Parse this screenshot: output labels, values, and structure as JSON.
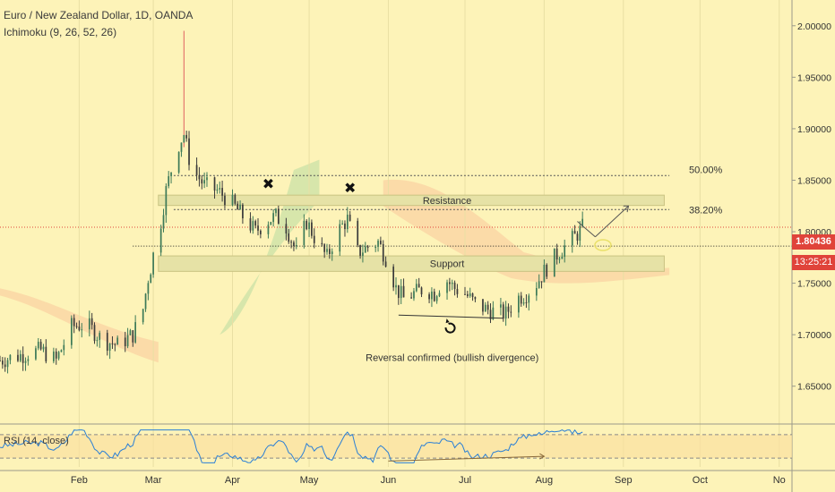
{
  "header": {
    "title": "Euro / New Zealand Dollar, 1D, OANDA",
    "indicator": "Ichimoku (9, 26, 52, 26)"
  },
  "price_axis": {
    "last_price": "1.80436",
    "countdown": "13:25:21",
    "last_color": "#e0433a"
  },
  "colors": {
    "background": "#fdf3b8",
    "up_candle": "#3d7a58",
    "down_candle": "#3b3b3b",
    "cloud_green": "#b8dba0",
    "cloud_red": "#f9c79a",
    "rsi_line": "#2a7fd6",
    "zone_fill": "#e6e2a6"
  },
  "annotations": {
    "resistance": "Resistance",
    "support": "Support",
    "fib_50": "50.00%",
    "fib_38": "38.20%",
    "reversal": "Reversal confirmed (bullish divergence)",
    "x_mark": "✖"
  },
  "rsi": {
    "label": "RSI (14, close)"
  },
  "chart_data": {
    "type": "candlestick",
    "title": "Euro / New Zealand Dollar, 1D, OANDA",
    "ylim": [
      1.615,
      2.025
    ],
    "y_ticks": [
      "2.00000",
      "1.95000",
      "1.90000",
      "1.85000",
      "1.80000",
      "1.75000",
      "1.70000",
      "1.65000"
    ],
    "y_tick_values": [
      2.0,
      1.95,
      1.9,
      1.85,
      1.8,
      1.75,
      1.7,
      1.65
    ],
    "x_labels": [
      "Feb",
      "Mar",
      "Apr",
      "May",
      "Jun",
      "Jul",
      "Aug",
      "Sep",
      "Oct",
      "No"
    ],
    "x_label_days": [
      31,
      60,
      91,
      121,
      152,
      182,
      213,
      244,
      274,
      305
    ],
    "x_range_days": [
      0,
      310
    ],
    "last_price": 1.80436,
    "levels": {
      "fib_50": 1.8545,
      "fib_38": 1.8215,
      "resistance_zone": [
        1.8255,
        1.8355
      ],
      "support_zone": [
        1.7615,
        1.7765
      ],
      "dotted_level": 1.786
    },
    "series": [
      {
        "anchors_day": [
          0,
          8,
          16,
          22,
          28,
          34,
          40,
          46,
          52,
          56,
          58,
          59,
          61,
          63,
          65,
          67,
          69,
          72,
          75,
          77,
          80,
          85,
          90,
          95,
          100,
          104,
          108,
          112,
          116,
          120,
          124,
          128,
          132,
          136,
          140,
          144,
          148,
          152,
          155,
          158,
          162,
          166,
          170,
          174,
          178,
          182,
          186,
          190,
          194,
          198,
          202,
          206,
          210,
          214,
          218,
          222,
          225,
          228
        ],
        "anchors_close": [
          1.675,
          1.68,
          1.685,
          1.675,
          1.708,
          1.71,
          1.695,
          1.69,
          1.7,
          1.725,
          1.755,
          1.765,
          1.79,
          1.81,
          1.84,
          1.86,
          1.88,
          1.895,
          1.86,
          1.855,
          1.845,
          1.84,
          1.83,
          1.815,
          1.8,
          1.81,
          1.815,
          1.805,
          1.78,
          1.81,
          1.79,
          1.775,
          1.8,
          1.812,
          1.78,
          1.785,
          1.79,
          1.77,
          1.745,
          1.735,
          1.74,
          1.745,
          1.74,
          1.755,
          1.745,
          1.74,
          1.73,
          1.725,
          1.722,
          1.72,
          1.735,
          1.74,
          1.75,
          1.765,
          1.778,
          1.788,
          1.795,
          1.804
        ]
      }
    ],
    "rsi": {
      "levels": [
        70,
        30
      ],
      "ylim": [
        15,
        85
      ]
    }
  }
}
